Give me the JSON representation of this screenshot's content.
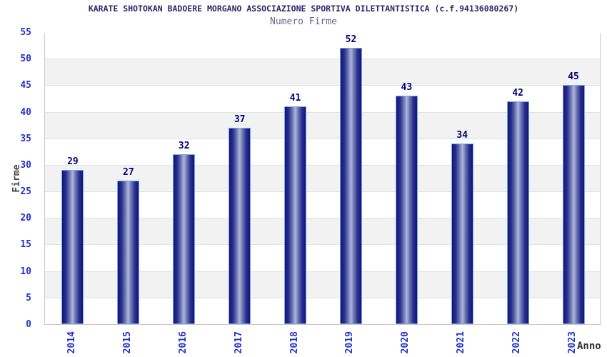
{
  "chart_data": {
    "type": "bar",
    "title": "KARATE SHOTOKAN BADOERE MORGANO ASSOCIAZIONE SPORTIVA DILETTANTISTICA (c.f.94136080267)",
    "subtitle": "Numero Firme",
    "xlabel": "Anno",
    "ylabel": "Firme",
    "categories": [
      "2014",
      "2015",
      "2016",
      "2017",
      "2018",
      "2019",
      "2020",
      "2021",
      "2022",
      "2023"
    ],
    "values": [
      29,
      27,
      32,
      37,
      41,
      52,
      43,
      34,
      42,
      45
    ],
    "ylim": [
      0,
      55
    ],
    "ytick_step": 5,
    "grid": "horizontal-alternating-bands",
    "legend": "none",
    "colors": {
      "title_text": "#29296b",
      "subtitle_text": "#666688",
      "tick_label": "#2431cc",
      "value_label": "#00007e",
      "axis_label": "#333333",
      "band_gray": "#f2f2f2",
      "band_white": "#ffffff",
      "grid_line": "#e2e2e2",
      "plot_border": "#c9c9c9",
      "bar_edge": "#131378",
      "bar_center": "#aeb6dc",
      "bar_border": "#74a9e8"
    }
  }
}
